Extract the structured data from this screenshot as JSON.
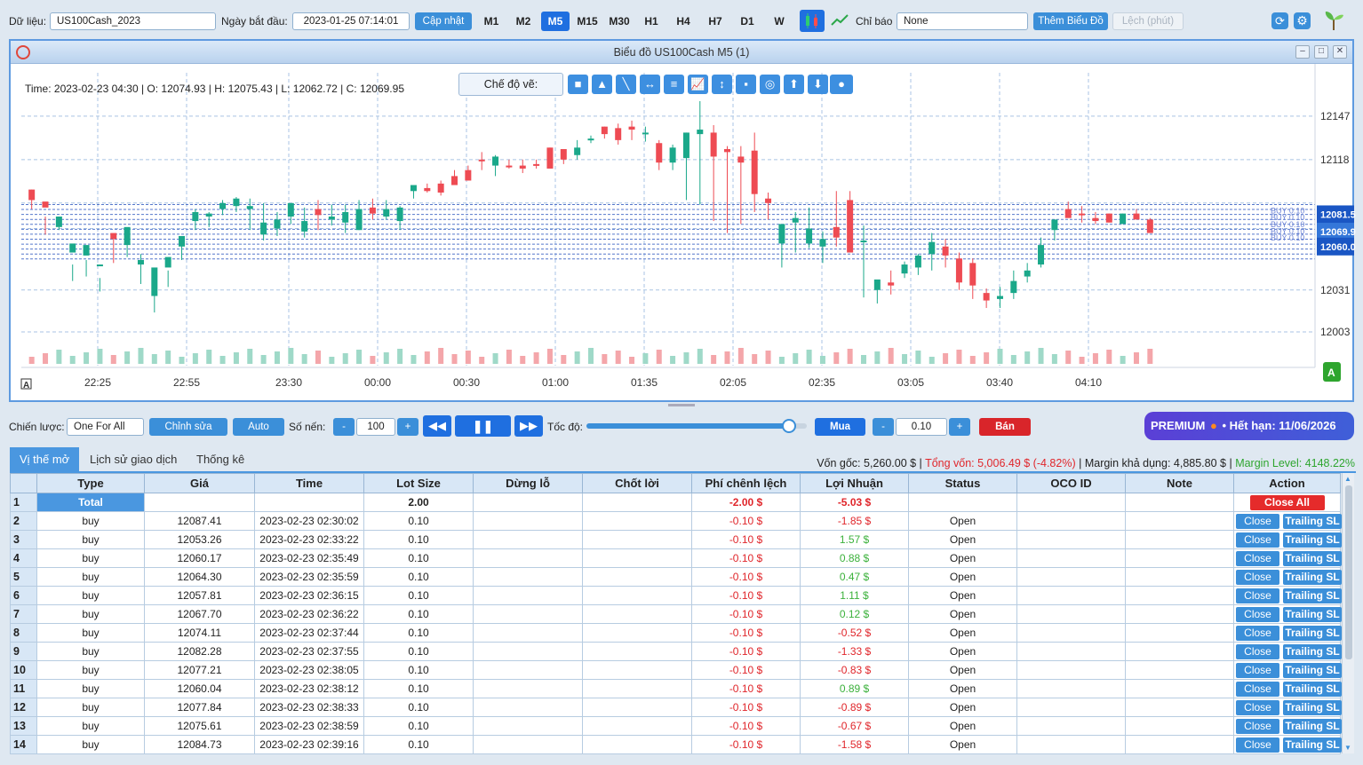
{
  "toolbar": {
    "data_label": "Dữ liệu:",
    "data_value": "US100Cash_2023",
    "start_label": "Ngày bắt đầu:",
    "start_value": "2023-01-25 07:14:01",
    "update_button": "Cập nhật",
    "timeframes": [
      "M1",
      "M2",
      "M5",
      "M15",
      "M30",
      "H1",
      "H4",
      "H7",
      "D1",
      "W"
    ],
    "active_timeframe": "M5",
    "indicator_label": "Chỉ báo",
    "indicator_value": "None",
    "add_chart_button": "Thêm Biểu Đồ",
    "offset_placeholder": "Lệch (phút)"
  },
  "chart_window": {
    "title": "Biểu đồ US100Cash M5 (1)",
    "ohlc_info": "Time: 2023-02-23 04:30 | O: 12074.93 | H: 12075.43 | L: 12062.72 | C: 12069.95",
    "draw_mode_label": "Chế độ vẽ:",
    "price_labels": [
      "12147",
      "12118",
      "12031",
      "12003"
    ],
    "price_tags": [
      "12081.5",
      "12069.9",
      "12060.0"
    ],
    "position_labels": [
      "BUY 0.10",
      "BUY 0.10",
      "BUY 0.10",
      "BUY 0.10",
      "BUY 0.10"
    ],
    "time_labels": [
      "22:25",
      "22:55",
      "23:30",
      "00:00",
      "00:30",
      "01:00",
      "01:35",
      "02:05",
      "02:35",
      "03:05",
      "03:40",
      "04:10"
    ],
    "corner_left": "A",
    "corner_right": "A"
  },
  "chart_data": {
    "type": "candlestick",
    "y_range": [
      11990,
      12170
    ],
    "candles": [
      [
        12098,
        12091,
        12098,
        12085
      ],
      [
        12090,
        12086,
        12080,
        12068
      ],
      [
        12073,
        12080,
        12071,
        12073
      ],
      [
        12056,
        12062,
        12048,
        12037
      ],
      [
        12054,
        12061,
        12051,
        12040
      ],
      [
        12048,
        12048,
        12039,
        12030
      ],
      [
        12069,
        12065,
        12066,
        12049
      ],
      [
        12061,
        12073,
        12072,
        12053
      ],
      [
        12048,
        12051,
        12055,
        12035
      ],
      [
        12027,
        12046,
        12029,
        12016
      ],
      [
        12046,
        12053,
        12044,
        12033
      ],
      [
        12060,
        12067,
        12061,
        12051
      ],
      [
        12077,
        12083,
        12085,
        12071
      ],
      [
        12080,
        12082,
        12083,
        12073
      ],
      [
        12085,
        12089,
        12091,
        12081
      ],
      [
        12087,
        12092,
        12093,
        12083
      ],
      [
        12085,
        12087,
        12092,
        12071
      ],
      [
        12068,
        12076,
        12089,
        12064
      ],
      [
        12072,
        12078,
        12083,
        12067
      ],
      [
        12080,
        12089,
        12087,
        12075
      ],
      [
        12070,
        12077,
        12086,
        12066
      ],
      [
        12085,
        12081,
        12091,
        12071
      ],
      [
        12078,
        12080,
        12088,
        12074
      ],
      [
        12076,
        12083,
        12088,
        12069
      ],
      [
        12071,
        12085,
        12091,
        12071
      ],
      [
        12086,
        12082,
        12092,
        12078
      ],
      [
        12080,
        12085,
        12091,
        12078
      ],
      [
        12077,
        12086,
        12087,
        12071
      ],
      [
        12097,
        12101,
        12100,
        12092
      ],
      [
        12099,
        12097,
        12102,
        12096
      ],
      [
        12102,
        12096,
        12104,
        12094
      ],
      [
        12107,
        12101,
        12111,
        12104
      ],
      [
        12111,
        12104,
        12114,
        12105
      ],
      [
        12118,
        12117,
        12123,
        12111
      ],
      [
        12114,
        12120,
        12121,
        12107
      ],
      [
        12114,
        12113,
        12118,
        12112
      ],
      [
        12114,
        12112,
        12118,
        12109
      ],
      [
        12115,
        12114,
        12118,
        12112
      ],
      [
        12126,
        12112,
        12126,
        12112
      ],
      [
        12125,
        12118,
        12125,
        12115
      ],
      [
        12121,
        12126,
        12131,
        12118
      ],
      [
        12131,
        12132,
        12134,
        12129
      ],
      [
        12140,
        12135,
        12140,
        12132
      ],
      [
        12139,
        12131,
        12142,
        12128
      ],
      [
        12140,
        12138,
        12144,
        12131
      ],
      [
        12135,
        12136,
        12140,
        12130
      ],
      [
        12129,
        12116,
        12131,
        12111
      ],
      [
        12116,
        12126,
        12128,
        12111
      ],
      [
        12119,
        12136,
        12136,
        12091
      ],
      [
        12135,
        12138,
        12157,
        12088
      ],
      [
        12136,
        12120,
        12141,
        12077
      ],
      [
        12125,
        12123,
        12127,
        12069
      ],
      [
        12120,
        12116,
        12127,
        12075
      ],
      [
        12124,
        12095,
        12136,
        12083
      ],
      [
        12092,
        12089,
        12096,
        12078
      ],
      [
        12062,
        12075,
        12074,
        12046
      ],
      [
        12076,
        12079,
        12083,
        12056
      ],
      [
        12062,
        12072,
        12086,
        12059
      ],
      [
        12060,
        12065,
        12070,
        12049
      ],
      [
        12073,
        12066,
        12097,
        12060
      ],
      [
        12091,
        12056,
        12097,
        12066
      ],
      [
        12064,
        12064,
        12074,
        12026
      ],
      [
        12031,
        12038,
        12033,
        12022
      ],
      [
        12036,
        12034,
        12044,
        12028
      ],
      [
        12042,
        12048,
        12050,
        12039
      ],
      [
        12046,
        12054,
        12055,
        12041
      ],
      [
        12055,
        12063,
        12069,
        12044
      ],
      [
        12060,
        12054,
        12065,
        12046
      ],
      [
        12052,
        12036,
        12056,
        12031
      ],
      [
        12049,
        12034,
        12052,
        12025
      ],
      [
        12029,
        12024,
        12032,
        12019
      ],
      [
        12025,
        12027,
        12033,
        12019
      ],
      [
        12029,
        12037,
        12044,
        12025
      ],
      [
        12040,
        12044,
        12049,
        12036
      ],
      [
        12048,
        12061,
        12066,
        12046
      ],
      [
        12071,
        12078,
        12078,
        12064
      ],
      [
        12085,
        12079,
        12090,
        12082
      ],
      [
        12082,
        12081,
        12087,
        12076
      ],
      [
        12079,
        12077,
        12083,
        12075
      ],
      [
        12082,
        12076,
        12082,
        12077
      ],
      [
        12075,
        12082,
        12082,
        12076
      ],
      [
        12082,
        12078,
        12085,
        12078
      ],
      [
        12078,
        12069,
        12079,
        12076
      ]
    ]
  },
  "controls": {
    "strategy_label": "Chiến lược:",
    "strategy_value": "One For All",
    "edit_button": "Chỉnh sửa",
    "auto_button": "Auto",
    "candles_label": "Số nến:",
    "candles_value": "100",
    "speed_label": "Tốc độ:",
    "speed_fraction": 0.92,
    "buy_button": "Mua",
    "lot_value": "0.10",
    "sell_button": "Bán",
    "premium_badge": "PREMIUM",
    "premium_expiry": "• Hết hạn: 11/06/2026",
    "minus": "-",
    "plus": "+"
  },
  "account": {
    "capital": "Vốn gốc: 5,260.00 $ |",
    "equity": "Tổng vốn: 5,006.49 $ (-4.82%)",
    "margin": "| Margin khả dụng: 4,885.80 $ |",
    "margin_level": "Margin Level: 4148.22%"
  },
  "tabs": [
    "Vị thế mở",
    "Lịch sử giao dịch",
    "Thống kê"
  ],
  "table": {
    "columns": [
      "",
      "Type",
      "Giá",
      "Time",
      "Lot Size",
      "Dừng lỗ",
      "Chốt lời",
      "Phí chênh lệch",
      "Lợi Nhuận",
      "Status",
      "OCO ID",
      "Note",
      "Action"
    ],
    "total": {
      "idx": "1",
      "label": "Total",
      "lot": "2.00",
      "fee": "-2.00 $",
      "profit": "-5.03 $",
      "action": "Close All"
    },
    "close_label": "Close",
    "trailing_label": "Trailing SL",
    "rows": [
      {
        "idx": "2",
        "type": "buy",
        "price": "12087.41",
        "time": "2023-02-23 02:30:02",
        "lot": "0.10",
        "fee": "-0.10 $",
        "profit": "-1.85 $",
        "status": "Open",
        "neg": true
      },
      {
        "idx": "3",
        "type": "buy",
        "price": "12053.26",
        "time": "2023-02-23 02:33:22",
        "lot": "0.10",
        "fee": "-0.10 $",
        "profit": "1.57 $",
        "status": "Open",
        "neg": false
      },
      {
        "idx": "4",
        "type": "buy",
        "price": "12060.17",
        "time": "2023-02-23 02:35:49",
        "lot": "0.10",
        "fee": "-0.10 $",
        "profit": "0.88 $",
        "status": "Open",
        "neg": false
      },
      {
        "idx": "5",
        "type": "buy",
        "price": "12064.30",
        "time": "2023-02-23 02:35:59",
        "lot": "0.10",
        "fee": "-0.10 $",
        "profit": "0.47 $",
        "status": "Open",
        "neg": false
      },
      {
        "idx": "6",
        "type": "buy",
        "price": "12057.81",
        "time": "2023-02-23 02:36:15",
        "lot": "0.10",
        "fee": "-0.10 $",
        "profit": "1.11 $",
        "status": "Open",
        "neg": false
      },
      {
        "idx": "7",
        "type": "buy",
        "price": "12067.70",
        "time": "2023-02-23 02:36:22",
        "lot": "0.10",
        "fee": "-0.10 $",
        "profit": "0.12 $",
        "status": "Open",
        "neg": false
      },
      {
        "idx": "8",
        "type": "buy",
        "price": "12074.11",
        "time": "2023-02-23 02:37:44",
        "lot": "0.10",
        "fee": "-0.10 $",
        "profit": "-0.52 $",
        "status": "Open",
        "neg": true
      },
      {
        "idx": "9",
        "type": "buy",
        "price": "12082.28",
        "time": "2023-02-23 02:37:55",
        "lot": "0.10",
        "fee": "-0.10 $",
        "profit": "-1.33 $",
        "status": "Open",
        "neg": true
      },
      {
        "idx": "10",
        "type": "buy",
        "price": "12077.21",
        "time": "2023-02-23 02:38:05",
        "lot": "0.10",
        "fee": "-0.10 $",
        "profit": "-0.83 $",
        "status": "Open",
        "neg": true
      },
      {
        "idx": "11",
        "type": "buy",
        "price": "12060.04",
        "time": "2023-02-23 02:38:12",
        "lot": "0.10",
        "fee": "-0.10 $",
        "profit": "0.89 $",
        "status": "Open",
        "neg": false
      },
      {
        "idx": "12",
        "type": "buy",
        "price": "12077.84",
        "time": "2023-02-23 02:38:33",
        "lot": "0.10",
        "fee": "-0.10 $",
        "profit": "-0.89 $",
        "status": "Open",
        "neg": true
      },
      {
        "idx": "13",
        "type": "buy",
        "price": "12075.61",
        "time": "2023-02-23 02:38:59",
        "lot": "0.10",
        "fee": "-0.10 $",
        "profit": "-0.67 $",
        "status": "Open",
        "neg": true
      },
      {
        "idx": "14",
        "type": "buy",
        "price": "12084.73",
        "time": "2023-02-23 02:39:16",
        "lot": "0.10",
        "fee": "-0.10 $",
        "profit": "-1.58 $",
        "status": "Open",
        "neg": true
      }
    ]
  },
  "colors": {
    "up": "#1aa88a",
    "down": "#ee4b53",
    "accent": "#3b8fd9",
    "active": "#1f6fe0"
  }
}
